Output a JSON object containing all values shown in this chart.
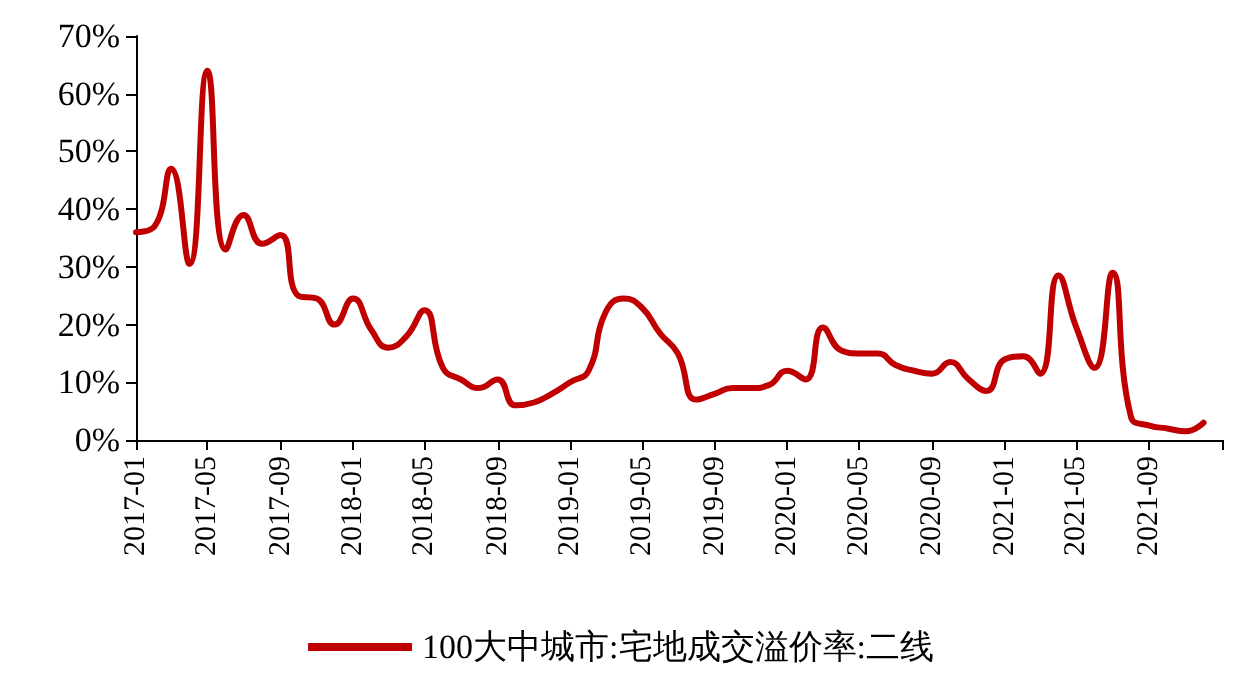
{
  "chart_data": {
    "type": "line",
    "x": [
      "2017-01",
      "2017-02",
      "2017-03",
      "2017-04",
      "2017-05",
      "2017-06",
      "2017-07",
      "2017-08",
      "2017-09",
      "2017-10",
      "2017-11",
      "2017-12",
      "2018-01",
      "2018-02",
      "2018-03",
      "2018-04",
      "2018-05",
      "2018-06",
      "2018-07",
      "2018-08",
      "2018-09",
      "2018-10",
      "2018-11",
      "2018-12",
      "2019-01",
      "2019-02",
      "2019-03",
      "2019-04",
      "2019-05",
      "2019-06",
      "2019-07",
      "2019-08",
      "2019-09",
      "2019-10",
      "2019-11",
      "2019-12",
      "2020-01",
      "2020-02",
      "2020-03",
      "2020-04",
      "2020-05",
      "2020-06",
      "2020-07",
      "2020-08",
      "2020-09",
      "2020-10",
      "2020-11",
      "2020-12",
      "2021-01",
      "2021-02",
      "2021-03",
      "2021-04",
      "2021-05",
      "2021-06",
      "2021-07",
      "2021-08",
      "2021-09",
      "2021-10",
      "2021-11",
      "2021-12"
    ],
    "series": [
      {
        "name": "100大中城市:宅地成交溢价率:二线",
        "color": "#c00000",
        "values": [
          36,
          37,
          47,
          30.5,
          64,
          33,
          39,
          34,
          35.5,
          25,
          24.5,
          20,
          24.5,
          19,
          16,
          18,
          22.5,
          12.5,
          10.5,
          9,
          10.5,
          6,
          6.5,
          8,
          10,
          12,
          22,
          24.5,
          23,
          18.5,
          15,
          7,
          8,
          9,
          9,
          9.5,
          12,
          10.5,
          19.5,
          15.5,
          15,
          15,
          13,
          12,
          11.5,
          13.5,
          10.5,
          8.5,
          14,
          14.5,
          11.5,
          28.5,
          19.5,
          12.5,
          29,
          4,
          2.5,
          2,
          1.5,
          3
        ]
      }
    ],
    "xlim": [
      "2017-01",
      "2022-01"
    ],
    "xticks": [
      {
        "value": "2017-01",
        "label": "2017-01"
      },
      {
        "value": "2017-05",
        "label": "2017-05"
      },
      {
        "value": "2017-09",
        "label": "2017-09"
      },
      {
        "value": "2018-01",
        "label": "2018-01"
      },
      {
        "value": "2018-05",
        "label": "2018-05"
      },
      {
        "value": "2018-09",
        "label": "2018-09"
      },
      {
        "value": "2019-01",
        "label": "2019-01"
      },
      {
        "value": "2019-05",
        "label": "2019-05"
      },
      {
        "value": "2019-09",
        "label": "2019-09"
      },
      {
        "value": "2020-01",
        "label": "2020-01"
      },
      {
        "value": "2020-05",
        "label": "2020-05"
      },
      {
        "value": "2020-09",
        "label": "2020-09"
      },
      {
        "value": "2021-01",
        "label": "2021-01"
      },
      {
        "value": "2021-05",
        "label": "2021-05"
      },
      {
        "value": "2021-09",
        "label": "2021-09"
      },
      {
        "value": "2022-01",
        "label": null
      }
    ],
    "ylim": [
      0,
      70
    ],
    "yticks": [
      {
        "value": 0,
        "label": "0%"
      },
      {
        "value": 10,
        "label": "10%"
      },
      {
        "value": 20,
        "label": "20%"
      },
      {
        "value": 30,
        "label": "30%"
      },
      {
        "value": 40,
        "label": "40%"
      },
      {
        "value": 50,
        "label": "50%"
      },
      {
        "value": 60,
        "label": "60%"
      },
      {
        "value": 70,
        "label": "70%"
      }
    ],
    "grid": false,
    "legend": "bottom",
    "marker": "none",
    "line_style": "solid"
  }
}
